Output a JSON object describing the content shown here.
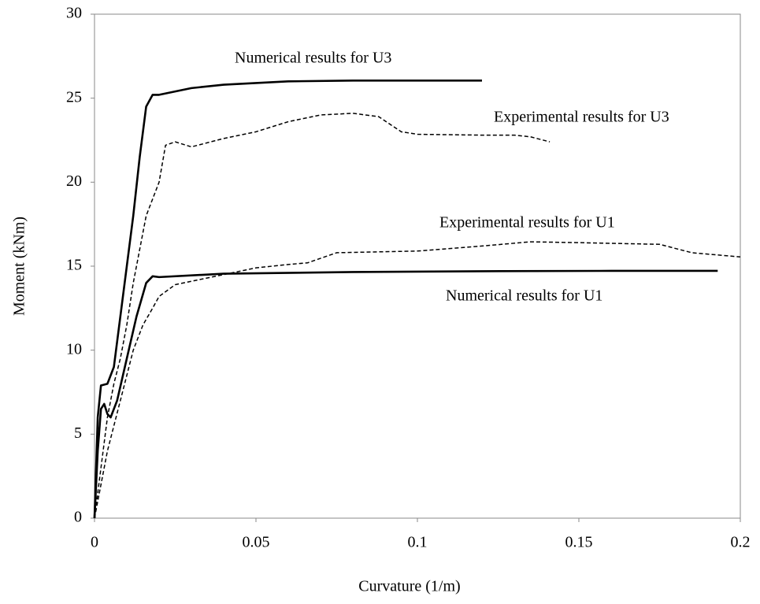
{
  "chart_data": {
    "type": "line",
    "x_label": "Curvature (1/m)",
    "y_label": "Moment (kNm)",
    "xlim": [
      0,
      0.2
    ],
    "ylim": [
      0,
      30
    ],
    "xticks": [
      0,
      0.05,
      0.1,
      0.15,
      0.2
    ],
    "yticks": [
      0,
      5,
      10,
      15,
      20,
      25,
      30
    ],
    "grid": false,
    "series": [
      {
        "name": "Numerical results for U3",
        "color": "#000000",
        "style": "solid",
        "x": [
          0,
          0.001,
          0.002,
          0.004,
          0.006,
          0.008,
          0.01,
          0.012,
          0.014,
          0.016,
          0.018,
          0.02,
          0.025,
          0.03,
          0.04,
          0.05,
          0.06,
          0.08,
          0.1,
          0.12
        ],
        "values": [
          0,
          6,
          7.9,
          8,
          9,
          12,
          15,
          18,
          21.5,
          24.5,
          25.2,
          25.2,
          25.4,
          25.6,
          25.8,
          25.9,
          26,
          26.05,
          26.05,
          26.05
        ]
      },
      {
        "name": "Experimental results for U3",
        "color": "#000000",
        "style": "dashed",
        "x": [
          0,
          0.002,
          0.004,
          0.006,
          0.008,
          0.01,
          0.012,
          0.014,
          0.016,
          0.018,
          0.02,
          0.022,
          0.025,
          0.03,
          0.04,
          0.05,
          0.06,
          0.07,
          0.08,
          0.088,
          0.095,
          0.1,
          0.12,
          0.13,
          0.135,
          0.141
        ],
        "values": [
          0,
          3,
          6,
          8,
          9.5,
          11.5,
          14,
          16,
          18,
          19,
          20,
          22.2,
          22.4,
          22.1,
          22.6,
          23,
          23.6,
          24,
          24.1,
          23.9,
          23,
          22.85,
          22.8,
          22.8,
          22.7,
          22.4
        ]
      },
      {
        "name": "Experimental results for U1",
        "color": "#000000",
        "style": "dashed",
        "x": [
          0,
          0.002,
          0.004,
          0.006,
          0.008,
          0.01,
          0.012,
          0.015,
          0.018,
          0.02,
          0.025,
          0.03,
          0.04,
          0.05,
          0.06,
          0.066,
          0.075,
          0.1,
          0.12,
          0.135,
          0.15,
          0.175,
          0.185,
          0.2
        ],
        "values": [
          0,
          2,
          4,
          5.5,
          7,
          8.5,
          10,
          11.5,
          12.5,
          13.2,
          13.9,
          14.1,
          14.5,
          14.9,
          15.1,
          15.2,
          15.8,
          15.9,
          16.2,
          16.45,
          16.4,
          16.3,
          15.8,
          15.55
        ]
      },
      {
        "name": "Numerical results for U1",
        "color": "#000000",
        "style": "solid",
        "x": [
          0,
          0.001,
          0.002,
          0.003,
          0.004,
          0.005,
          0.007,
          0.01,
          0.013,
          0.016,
          0.018,
          0.02,
          0.04,
          0.08,
          0.12,
          0.16,
          0.193
        ],
        "values": [
          0,
          4,
          6.5,
          6.8,
          6.2,
          6,
          7,
          9.5,
          12,
          14,
          14.4,
          14.35,
          14.55,
          14.65,
          14.7,
          14.72,
          14.72
        ]
      }
    ]
  }
}
